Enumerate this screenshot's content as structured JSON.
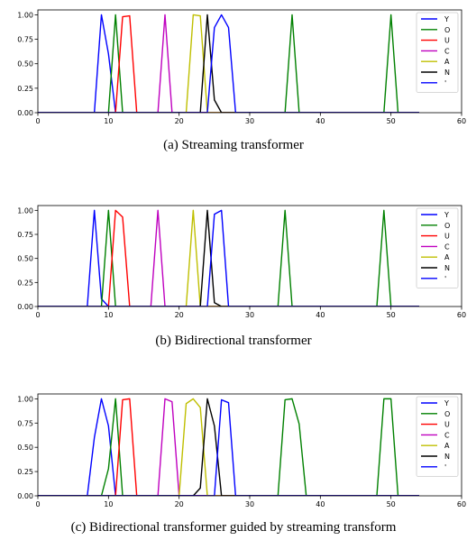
{
  "chart_data": [
    {
      "type": "line",
      "caption": "(a) Streaming transformer",
      "xlim": [
        0,
        60
      ],
      "ylim": [
        0,
        1.05
      ],
      "xticks": [
        "0",
        "10",
        "20",
        "30",
        "40",
        "50",
        "60"
      ],
      "yticks": [
        "0.00",
        "0.25",
        "0.50",
        "0.75",
        "1.00"
      ],
      "legend_position": "top-right",
      "grid": false,
      "series": [
        {
          "name": "Y",
          "color": "#0000ff",
          "x": [
            0,
            8,
            9,
            10,
            11,
            54
          ],
          "y": [
            0,
            0,
            1.0,
            0.6,
            0,
            0
          ]
        },
        {
          "name": "O",
          "color": "#008000",
          "x": [
            0,
            10,
            11,
            12,
            35,
            36,
            37,
            49,
            50,
            51,
            54
          ],
          "y": [
            0,
            0,
            1.0,
            0,
            0,
            1.0,
            0,
            0,
            1.0,
            0,
            0
          ]
        },
        {
          "name": "U",
          "color": "#ff0000",
          "x": [
            0,
            11,
            12,
            13,
            14,
            54
          ],
          "y": [
            0,
            0,
            0.98,
            0.99,
            0,
            0
          ]
        },
        {
          "name": "C",
          "color": "#bf00bf",
          "x": [
            0,
            17,
            18,
            19,
            54
          ],
          "y": [
            0,
            0,
            1.0,
            0,
            0
          ]
        },
        {
          "name": "A",
          "color": "#bfbf00",
          "x": [
            0,
            21,
            22,
            23,
            24,
            54
          ],
          "y": [
            0,
            0,
            1.0,
            0.99,
            0,
            0
          ]
        },
        {
          "name": "N",
          "color": "#000000",
          "x": [
            0,
            23,
            24,
            25,
            26,
            54
          ],
          "y": [
            0,
            0,
            1.0,
            0.13,
            0,
            0
          ]
        },
        {
          "name": "'",
          "color": "#0000ff",
          "x": [
            0,
            24,
            25,
            26,
            27,
            28,
            54
          ],
          "y": [
            0,
            0,
            0.87,
            1.0,
            0.87,
            0,
            0
          ]
        }
      ]
    },
    {
      "type": "line",
      "caption": "(b) Bidirectional transformer",
      "xlim": [
        0,
        60
      ],
      "ylim": [
        0,
        1.05
      ],
      "xticks": [
        "0",
        "10",
        "20",
        "30",
        "40",
        "50",
        "60"
      ],
      "yticks": [
        "0.00",
        "0.25",
        "0.50",
        "0.75",
        "1.00"
      ],
      "legend_position": "top-right",
      "grid": false,
      "series": [
        {
          "name": "Y",
          "color": "#0000ff",
          "x": [
            0,
            7,
            8,
            9,
            10,
            54
          ],
          "y": [
            0,
            0,
            1.0,
            0.08,
            0,
            0
          ]
        },
        {
          "name": "O",
          "color": "#008000",
          "x": [
            0,
            9,
            10,
            11,
            34,
            35,
            36,
            48,
            49,
            50,
            54
          ],
          "y": [
            0,
            0,
            1.0,
            0,
            0,
            1.0,
            0,
            0,
            1.0,
            0,
            0
          ]
        },
        {
          "name": "U",
          "color": "#ff0000",
          "x": [
            0,
            10,
            11,
            12,
            13,
            54
          ],
          "y": [
            0,
            0,
            1.0,
            0.93,
            0,
            0
          ]
        },
        {
          "name": "C",
          "color": "#bf00bf",
          "x": [
            0,
            16,
            17,
            18,
            54
          ],
          "y": [
            0,
            0,
            1.0,
            0,
            0
          ]
        },
        {
          "name": "A",
          "color": "#bfbf00",
          "x": [
            0,
            21,
            22,
            23,
            54
          ],
          "y": [
            0,
            0,
            1.0,
            0,
            0
          ]
        },
        {
          "name": "N",
          "color": "#000000",
          "x": [
            0,
            23,
            24,
            25,
            26,
            54
          ],
          "y": [
            0,
            0,
            1.0,
            0.04,
            0,
            0
          ]
        },
        {
          "name": "'",
          "color": "#0000ff",
          "x": [
            0,
            24,
            25,
            26,
            27,
            54
          ],
          "y": [
            0,
            0,
            0.96,
            1.0,
            0,
            0
          ]
        }
      ]
    },
    {
      "type": "line",
      "caption": "(c) Bidirectional transformer guided by streaming transform",
      "xlim": [
        0,
        60
      ],
      "ylim": [
        0,
        1.05
      ],
      "xticks": [
        "0",
        "10",
        "20",
        "30",
        "40",
        "50",
        "60"
      ],
      "yticks": [
        "0.00",
        "0.25",
        "0.50",
        "0.75",
        "1.00"
      ],
      "legend_position": "top-right",
      "grid": false,
      "series": [
        {
          "name": "Y",
          "color": "#0000ff",
          "x": [
            0,
            7,
            8,
            9,
            10,
            11,
            54
          ],
          "y": [
            0,
            0,
            0.6,
            1.0,
            0.72,
            0,
            0
          ]
        },
        {
          "name": "O",
          "color": "#008000",
          "x": [
            0,
            9,
            10,
            11,
            12,
            34,
            35,
            36,
            37,
            38,
            48,
            49,
            50,
            51,
            54
          ],
          "y": [
            0,
            0,
            0.28,
            1.0,
            0,
            0,
            0.99,
            1.0,
            0.74,
            0,
            0,
            1.0,
            1.0,
            0,
            0
          ]
        },
        {
          "name": "U",
          "color": "#ff0000",
          "x": [
            0,
            11,
            12,
            13,
            14,
            54
          ],
          "y": [
            0,
            0,
            0.99,
            1.0,
            0,
            0
          ]
        },
        {
          "name": "C",
          "color": "#bf00bf",
          "x": [
            0,
            17,
            18,
            19,
            20,
            54
          ],
          "y": [
            0,
            0,
            1.0,
            0.97,
            0,
            0
          ]
        },
        {
          "name": "A",
          "color": "#bfbf00",
          "x": [
            0,
            20,
            21,
            22,
            23,
            24,
            54
          ],
          "y": [
            0,
            0,
            0.95,
            1.0,
            0.91,
            0,
            0
          ]
        },
        {
          "name": "N",
          "color": "#000000",
          "x": [
            0,
            22,
            23,
            24,
            25,
            26,
            54
          ],
          "y": [
            0,
            0,
            0.08,
            1.0,
            0.72,
            0,
            0
          ]
        },
        {
          "name": "'",
          "color": "#0000ff",
          "x": [
            0,
            25,
            26,
            27,
            28,
            54
          ],
          "y": [
            0,
            0,
            0.99,
            0.96,
            0,
            0
          ]
        }
      ]
    }
  ]
}
